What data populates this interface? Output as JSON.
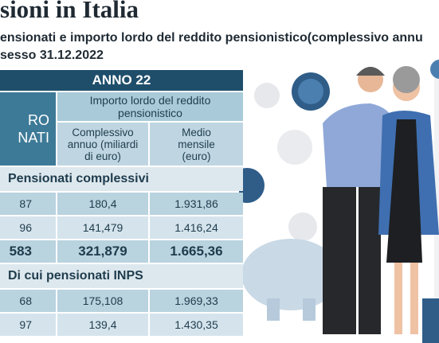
{
  "header": {
    "title": "sioni in Italia",
    "subtitle": [
      "ensionati e importo lordo del reddito pensionistico(complessivo annu",
      "sesso 31.12.2022"
    ]
  },
  "table": {
    "year": "ANNO 22",
    "first_column": [
      "RO",
      "NATI"
    ],
    "group_header": "Importo lordo del reddito pensionistico",
    "columns": [
      "Complessivo annuo (miliardi di euro)",
      "Medio mensile (euro)"
    ],
    "sections": [
      {
        "title": "Pensionati complessivi",
        "rows": [
          [
            "87",
            "180,4",
            "1.931,86"
          ],
          [
            "96",
            "141,479",
            "1.416,24"
          ],
          [
            "583",
            "321,879",
            "1.665,36"
          ]
        ]
      },
      {
        "title": "Di cui pensionati INPS",
        "rows": [
          [
            "68",
            "175,108",
            "1.969,33"
          ],
          [
            "97",
            "139,4",
            "1.430,35"
          ]
        ]
      }
    ]
  }
}
